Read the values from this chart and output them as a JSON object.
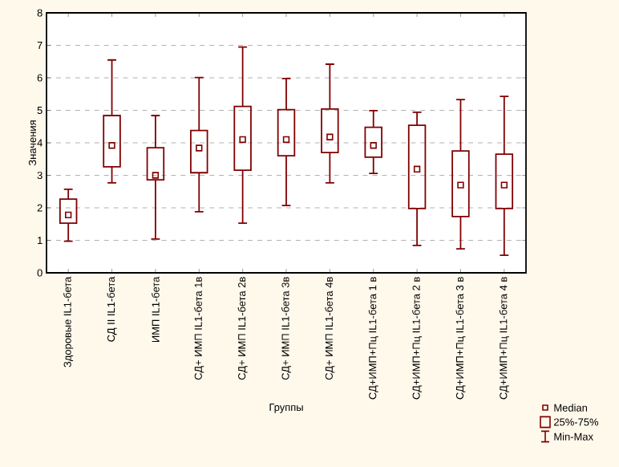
{
  "chart_data": {
    "type": "box",
    "xlabel": "Группы",
    "ylabel": "Значения",
    "categories": [
      "Здоровые IL1-бета",
      "СД II  IL1-бета",
      "ИМП IL1-бета",
      "СД+ ИМП IL1-бета 1в",
      "СД+ ИМП IL1-бета 2в",
      "СД+ ИМП IL1-бета 3в",
      "СД+ ИМП IL1-бета 4в",
      "СД+ИМП+Пц  IL1-бета  1 в",
      "СД+ИМП+Пц  IL1-бета  2 в",
      "СД+ИМП+Пц  IL1-бета  3 в",
      "СД+ИМП+Пц  IL1-бета  4 в"
    ],
    "color": "#800000",
    "boxes": [
      {
        "low": 0.97,
        "q1": 1.53,
        "median": 1.78,
        "q3": 2.27,
        "high": 2.57
      },
      {
        "low": 2.77,
        "q1": 3.26,
        "median": 3.92,
        "q3": 4.84,
        "high": 6.55
      },
      {
        "low": 1.04,
        "q1": 2.86,
        "median": 3.0,
        "q3": 3.85,
        "high": 4.84
      },
      {
        "low": 1.88,
        "q1": 3.08,
        "median": 3.84,
        "q3": 4.38,
        "high": 6.01
      },
      {
        "low": 1.53,
        "q1": 3.16,
        "median": 4.1,
        "q3": 5.12,
        "high": 6.95
      },
      {
        "low": 2.07,
        "q1": 3.6,
        "median": 4.1,
        "q3": 5.02,
        "high": 5.98
      },
      {
        "low": 2.77,
        "q1": 3.7,
        "median": 4.18,
        "q3": 5.04,
        "high": 6.42
      },
      {
        "low": 3.06,
        "q1": 3.56,
        "median": 3.92,
        "q3": 4.48,
        "high": 4.99
      },
      {
        "low": 0.84,
        "q1": 1.98,
        "median": 3.19,
        "q3": 4.54,
        "high": 4.94
      },
      {
        "low": 0.74,
        "q1": 1.73,
        "median": 2.7,
        "q3": 3.75,
        "high": 5.33
      },
      {
        "low": 0.54,
        "q1": 1.98,
        "median": 2.7,
        "q3": 3.65,
        "high": 5.43
      }
    ],
    "ylim": [
      0,
      8
    ],
    "yticks": [
      0,
      1,
      2,
      3,
      4,
      5,
      6,
      7,
      8
    ],
    "grid": "y",
    "annotations": [
      "Median",
      "25%-75%",
      "Min-Max"
    ]
  }
}
